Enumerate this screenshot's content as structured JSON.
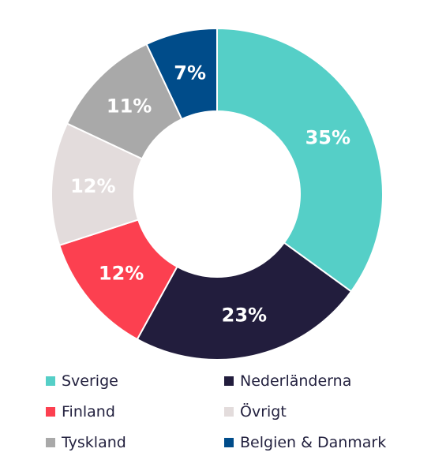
{
  "chart_data": {
    "type": "pie",
    "donut": true,
    "categories": [
      "Sverige",
      "Nederländerna",
      "Finland",
      "Övrigt",
      "Tyskland",
      "Belgien & Danmark"
    ],
    "values": [
      35,
      23,
      12,
      12,
      11,
      7
    ],
    "data_labels": [
      "35%",
      "23%",
      "12%",
      "12%",
      "11%",
      "7%"
    ],
    "colors": [
      "#55cfc7",
      "#221d3d",
      "#fc4050",
      "#e3dcdc",
      "#a9a9a9",
      "#004c8a"
    ],
    "legend_placement": "bottom",
    "title": "",
    "xlabel": "",
    "ylabel": ""
  },
  "legend": {
    "items": [
      {
        "label": "Sverige",
        "color": "#55cfc7"
      },
      {
        "label": "Nederländerna",
        "color": "#221d3d"
      },
      {
        "label": "Finland",
        "color": "#fc4050"
      },
      {
        "label": "Övrigt",
        "color": "#e3dcdc"
      },
      {
        "label": "Tyskland",
        "color": "#a9a9a9"
      },
      {
        "label": "Belgien & Danmark",
        "color": "#004c8a"
      }
    ]
  }
}
